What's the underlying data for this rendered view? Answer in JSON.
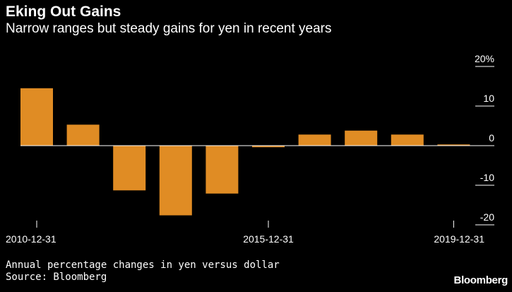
{
  "header": {
    "title": "Eking Out Gains",
    "subtitle": "Narrow ranges but steady gains for yen in recent years"
  },
  "footer": {
    "note": "Annual percentage changes in yen versus dollar",
    "source": "Source: Bloomberg",
    "brand": "Bloomberg"
  },
  "colors": {
    "background": "#000000",
    "bar": "#E08C24",
    "text": "#ffffff",
    "axis": "#ffffff"
  },
  "chart_data": {
    "type": "bar",
    "title": "Eking Out Gains",
    "subtitle": "Narrow ranges but steady gains for yen in recent years",
    "xlabel": "",
    "ylabel": "",
    "categories": [
      "2010-12-31",
      "2011-12-31",
      "2012-12-31",
      "2013-12-31",
      "2014-12-31",
      "2015-12-31",
      "2016-12-31",
      "2017-12-31",
      "2018-12-31",
      "2019-12-31"
    ],
    "values": [
      14.5,
      5.3,
      -11.3,
      -17.6,
      -12.1,
      -0.4,
      2.8,
      3.8,
      2.8,
      0.3
    ],
    "ylim": [
      -21,
      21
    ],
    "yticks": [
      {
        "value": 20,
        "label": "20%"
      },
      {
        "value": 10,
        "label": "10"
      },
      {
        "value": 0,
        "label": "0"
      },
      {
        "value": -10,
        "label": "-10"
      },
      {
        "value": -20,
        "label": "-20"
      }
    ],
    "xtick_labels": [
      {
        "index": 0,
        "label": "2010-12-31"
      },
      {
        "index": 5,
        "label": "2015-12-31"
      },
      {
        "index": 9,
        "label": "2019-12-31"
      }
    ],
    "grid": false,
    "y_axis_side": "right"
  }
}
